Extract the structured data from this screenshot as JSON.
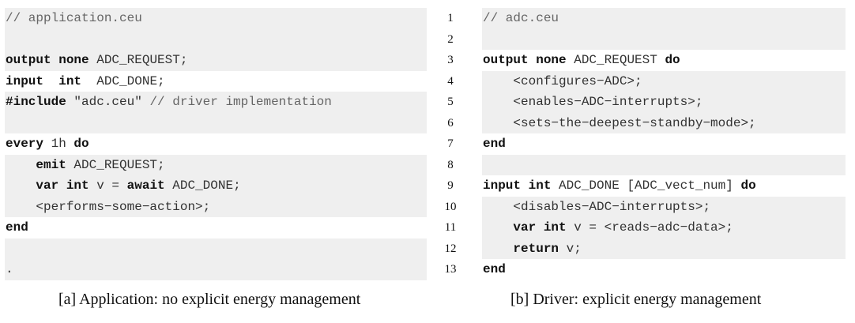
{
  "left_listing": [
    {
      "shade": true,
      "tokens": [
        {
          "c": "cm",
          "t": "// application.ceu"
        }
      ]
    },
    {
      "shade": true,
      "tokens": []
    },
    {
      "shade": true,
      "tokens": [
        {
          "c": "kw",
          "t": "output none"
        },
        {
          "c": "tx",
          "t": " ADC_REQUEST;"
        }
      ]
    },
    {
      "shade": false,
      "tokens": [
        {
          "c": "kw",
          "t": "input"
        },
        {
          "c": "tx",
          "t": "  "
        },
        {
          "c": "kw",
          "t": "int"
        },
        {
          "c": "tx",
          "t": "  ADC_DONE;"
        }
      ]
    },
    {
      "shade": true,
      "tokens": [
        {
          "c": "kw",
          "t": "#include"
        },
        {
          "c": "tx",
          "t": " \"adc.ceu\" "
        },
        {
          "c": "cm",
          "t": "// driver implementation"
        }
      ]
    },
    {
      "shade": true,
      "tokens": []
    },
    {
      "shade": false,
      "tokens": [
        {
          "c": "kw",
          "t": "every"
        },
        {
          "c": "tx",
          "t": " 1h "
        },
        {
          "c": "kw",
          "t": "do"
        }
      ]
    },
    {
      "shade": true,
      "tokens": [
        {
          "c": "tx",
          "t": "    "
        },
        {
          "c": "kw",
          "t": "emit"
        },
        {
          "c": "tx",
          "t": " ADC_REQUEST;"
        }
      ]
    },
    {
      "shade": true,
      "tokens": [
        {
          "c": "tx",
          "t": "    "
        },
        {
          "c": "kw",
          "t": "var int"
        },
        {
          "c": "tx",
          "t": " v = "
        },
        {
          "c": "kw",
          "t": "await"
        },
        {
          "c": "tx",
          "t": " ADC_DONE;"
        }
      ]
    },
    {
      "shade": true,
      "tokens": [
        {
          "c": "tx",
          "t": "    <performs−some−action>;"
        }
      ]
    },
    {
      "shade": false,
      "tokens": [
        {
          "c": "kw",
          "t": "end"
        }
      ]
    },
    {
      "shade": true,
      "tokens": []
    },
    {
      "shade": true,
      "tokens": [
        {
          "c": "tx",
          "t": "."
        }
      ]
    }
  ],
  "right_listing": [
    {
      "shade": true,
      "tokens": [
        {
          "c": "cm",
          "t": "// adc.ceu"
        }
      ]
    },
    {
      "shade": true,
      "tokens": []
    },
    {
      "shade": false,
      "tokens": [
        {
          "c": "kw",
          "t": "output none"
        },
        {
          "c": "tx",
          "t": " ADC_REQUEST "
        },
        {
          "c": "kw",
          "t": "do"
        }
      ]
    },
    {
      "shade": true,
      "tokens": [
        {
          "c": "tx",
          "t": "    <configures−ADC>;"
        }
      ]
    },
    {
      "shade": true,
      "tokens": [
        {
          "c": "tx",
          "t": "    <enables−ADC−interrupts>;"
        }
      ]
    },
    {
      "shade": true,
      "tokens": [
        {
          "c": "tx",
          "t": "    <sets−the−deepest−standby−mode>;"
        }
      ]
    },
    {
      "shade": false,
      "tokens": [
        {
          "c": "kw",
          "t": "end"
        }
      ]
    },
    {
      "shade": true,
      "tokens": []
    },
    {
      "shade": false,
      "tokens": [
        {
          "c": "kw",
          "t": "input int"
        },
        {
          "c": "tx",
          "t": " ADC_DONE [ADC_vect_num] "
        },
        {
          "c": "kw",
          "t": "do"
        }
      ]
    },
    {
      "shade": true,
      "tokens": [
        {
          "c": "tx",
          "t": "    <disables−ADC−interrupts>;"
        }
      ]
    },
    {
      "shade": true,
      "tokens": [
        {
          "c": "tx",
          "t": "    "
        },
        {
          "c": "kw",
          "t": "var int"
        },
        {
          "c": "tx",
          "t": " v = <reads−adc−data>;"
        }
      ]
    },
    {
      "shade": true,
      "tokens": [
        {
          "c": "tx",
          "t": "    "
        },
        {
          "c": "kw",
          "t": "return"
        },
        {
          "c": "tx",
          "t": " v;"
        }
      ]
    },
    {
      "shade": false,
      "tokens": [
        {
          "c": "kw",
          "t": "end"
        }
      ]
    }
  ],
  "line_numbers": [
    "1",
    "2",
    "3",
    "4",
    "5",
    "6",
    "7",
    "8",
    "9",
    "10",
    "11",
    "12",
    "13"
  ],
  "captions": {
    "left": "[a] Application: no explicit energy management",
    "right": "[b] Driver: explicit energy management"
  }
}
